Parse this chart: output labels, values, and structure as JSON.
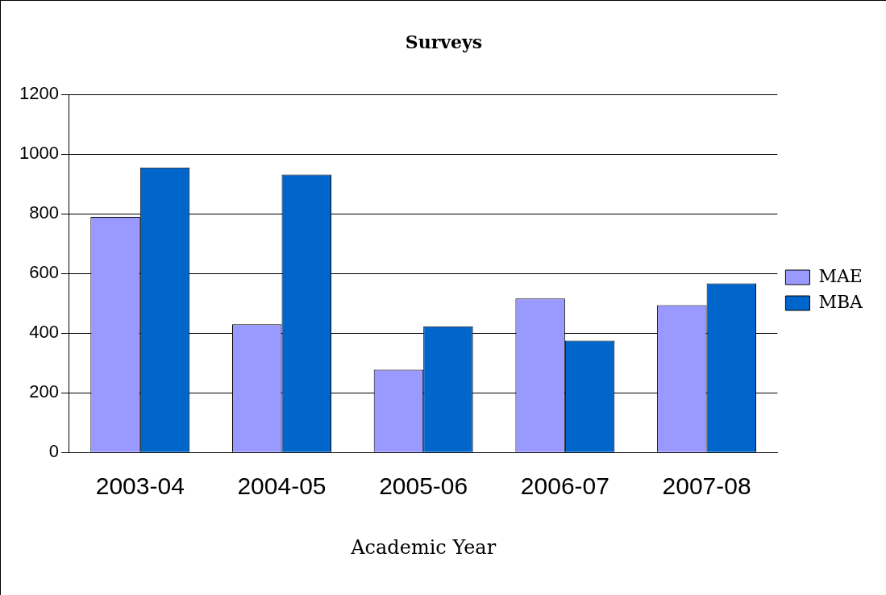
{
  "chart_data": {
    "type": "bar",
    "title": "Surveys",
    "xlabel": "Academic Year",
    "categories": [
      "2003-04",
      "2004-05",
      "2005-06",
      "2006-07",
      "2007-08"
    ],
    "series": [
      {
        "name": "MAE",
        "color": "#9999ff",
        "values": [
          790,
          430,
          278,
          516,
          494
        ]
      },
      {
        "name": "MBA",
        "color": "#0066cc",
        "values": [
          956,
          932,
          423,
          375,
          567
        ]
      }
    ],
    "ylim": [
      0,
      1200
    ],
    "yticks": [
      0,
      200,
      400,
      600,
      800,
      1000,
      1200
    ],
    "grid": "y",
    "legend": "right"
  }
}
